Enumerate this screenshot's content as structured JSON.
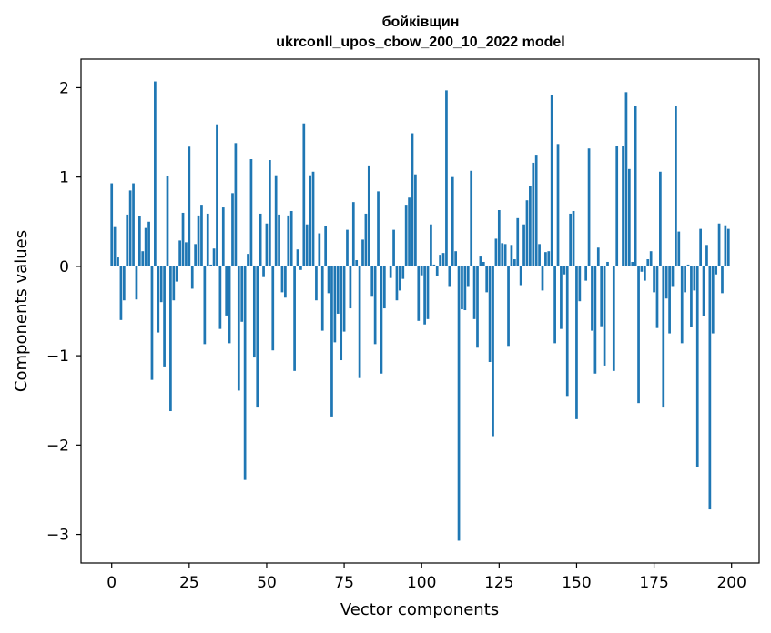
{
  "chart_data": {
    "type": "bar",
    "title": "бойківщин",
    "subtitle": "ukrconll_upos_cbow_200_10_2022 model",
    "xlabel": "Vector components",
    "ylabel": "Components values",
    "xlim": [
      -9.9,
      208.9
    ],
    "ylim": [
      -3.32,
      2.32
    ],
    "xticks": [
      0,
      25,
      50,
      75,
      100,
      125,
      150,
      175,
      200
    ],
    "xtick_labels": [
      "0",
      "25",
      "50",
      "75",
      "100",
      "125",
      "150",
      "175",
      "200"
    ],
    "yticks": [
      -3,
      -2,
      -1,
      0,
      1,
      2
    ],
    "ytick_labels": [
      "−3",
      "−2",
      "−1",
      "0",
      "1",
      "2"
    ],
    "bar_color": "#1f77b4",
    "grid": false,
    "legend": "none",
    "x": [
      0,
      1,
      2,
      3,
      4,
      5,
      6,
      7,
      8,
      9,
      10,
      11,
      12,
      13,
      14,
      15,
      16,
      17,
      18,
      19,
      20,
      21,
      22,
      23,
      24,
      25,
      26,
      27,
      28,
      29,
      30,
      31,
      32,
      33,
      34,
      35,
      36,
      37,
      38,
      39,
      40,
      41,
      42,
      43,
      44,
      45,
      46,
      47,
      48,
      49,
      50,
      51,
      52,
      53,
      54,
      55,
      56,
      57,
      58,
      59,
      60,
      61,
      62,
      63,
      64,
      65,
      66,
      67,
      68,
      69,
      70,
      71,
      72,
      73,
      74,
      75,
      76,
      77,
      78,
      79,
      80,
      81,
      82,
      83,
      84,
      85,
      86,
      87,
      88,
      89,
      90,
      91,
      92,
      93,
      94,
      95,
      96,
      97,
      98,
      99,
      100,
      101,
      102,
      103,
      104,
      105,
      106,
      107,
      108,
      109,
      110,
      111,
      112,
      113,
      114,
      115,
      116,
      117,
      118,
      119,
      120,
      121,
      122,
      123,
      124,
      125,
      126,
      127,
      128,
      129,
      130,
      131,
      132,
      133,
      134,
      135,
      136,
      137,
      138,
      139,
      140,
      141,
      142,
      143,
      144,
      145,
      146,
      147,
      148,
      149,
      150,
      151,
      152,
      153,
      154,
      155,
      156,
      157,
      158,
      159,
      160,
      161,
      162,
      163,
      164,
      165,
      166,
      167,
      168,
      169,
      170,
      171,
      172,
      173,
      174,
      175,
      176,
      177,
      178,
      179,
      180,
      181,
      182,
      183,
      184,
      185,
      186,
      187,
      188,
      189,
      190,
      191,
      192,
      193,
      194,
      195,
      196,
      197,
      198,
      199
    ],
    "values": [
      0.93,
      0.44,
      0.1,
      -0.6,
      -0.38,
      0.58,
      0.85,
      0.93,
      -0.37,
      0.56,
      0.17,
      0.43,
      0.5,
      -1.27,
      2.07,
      -0.74,
      -0.4,
      -1.12,
      1.01,
      -1.62,
      -0.38,
      -0.17,
      0.29,
      0.6,
      0.27,
      1.34,
      -0.25,
      0.25,
      0.57,
      0.69,
      -0.87,
      0.59,
      0.02,
      0.2,
      1.59,
      -0.7,
      0.66,
      -0.55,
      -0.86,
      0.82,
      1.38,
      -1.39,
      -0.62,
      -2.39,
      0.14,
      1.2,
      -1.02,
      -1.58,
      0.59,
      -0.12,
      0.48,
      1.19,
      -0.94,
      1.02,
      0.58,
      -0.29,
      -0.35,
      0.57,
      0.62,
      -1.17,
      0.19,
      -0.04,
      1.6,
      0.47,
      1.02,
      1.06,
      -0.38,
      0.37,
      -0.72,
      0.45,
      -0.3,
      -1.68,
      -0.85,
      -0.53,
      -1.05,
      -0.73,
      0.41,
      -0.47,
      0.72,
      0.07,
      -1.25,
      0.3,
      0.59,
      1.13,
      -0.34,
      -0.87,
      0.84,
      -1.2,
      -0.47,
      0.0,
      -0.13,
      0.41,
      -0.38,
      -0.27,
      -0.14,
      0.69,
      0.77,
      1.49,
      1.03,
      -0.61,
      -0.1,
      -0.65,
      -0.59,
      0.47,
      0.02,
      -0.11,
      0.13,
      0.15,
      1.97,
      -0.23,
      1.0,
      0.17,
      -3.07,
      -0.48,
      -0.49,
      -0.23,
      1.07,
      -0.59,
      -0.91,
      0.11,
      0.05,
      -0.29,
      -1.07,
      -1.9,
      0.31,
      0.63,
      0.26,
      0.25,
      -0.89,
      0.24,
      0.08,
      0.54,
      -0.21,
      0.47,
      0.74,
      0.9,
      1.16,
      1.25,
      0.25,
      -0.27,
      0.16,
      0.17,
      1.92,
      -0.86,
      1.37,
      -0.7,
      -0.09,
      -1.45,
      0.59,
      0.62,
      -1.71,
      -0.39,
      0.0,
      -0.16,
      1.32,
      -0.72,
      -1.2,
      0.21,
      -0.67,
      -1.11,
      0.05,
      0.0,
      -1.17,
      1.35,
      0.0,
      1.35,
      1.95,
      1.09,
      0.05,
      1.8,
      -1.53,
      -0.06,
      -0.16,
      0.08,
      0.17,
      -0.29,
      -0.69,
      1.06,
      -1.58,
      -0.36,
      -0.75,
      -0.23,
      1.8,
      0.39,
      -0.86,
      -0.29,
      0.02,
      -0.68,
      -0.27,
      -2.25,
      0.42,
      -0.56,
      0.24,
      -2.72,
      -0.75,
      -0.09,
      0.48,
      -0.3,
      0.46,
      0.42
    ]
  }
}
